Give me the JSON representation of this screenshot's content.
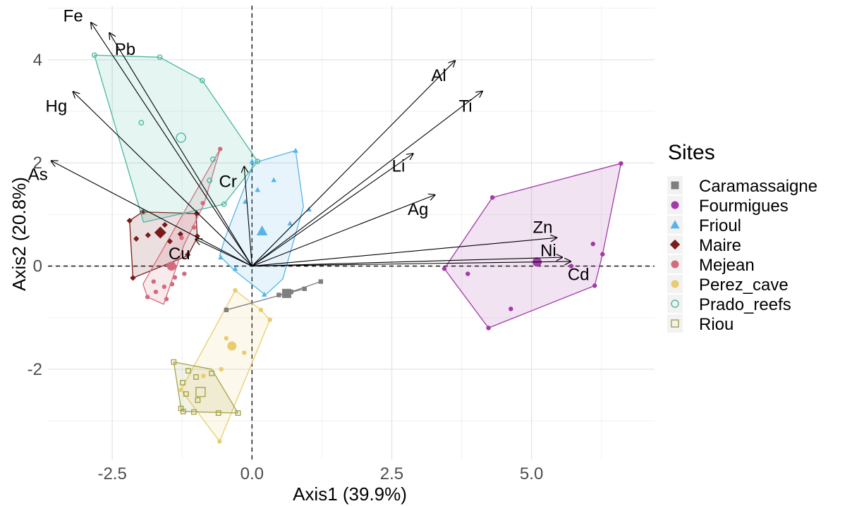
{
  "chart_data": {
    "type": "scatter",
    "xlabel": "Axis1 (39.9%)",
    "ylabel": "Axis2 (20.8%)",
    "xlim": [
      -3.65,
      7.2
    ],
    "ylim": [
      -3.75,
      5.05
    ],
    "x_ticks": [
      -2.5,
      0.0,
      2.5,
      5.0
    ],
    "x_tick_labels": [
      "-2.5",
      "0.0",
      "2.5",
      "5.0"
    ],
    "y_ticks": [
      -2,
      0,
      2,
      4
    ],
    "y_tick_labels": [
      "-2",
      "0",
      "2",
      "4"
    ],
    "grid": true,
    "reference_lines": {
      "x": 0,
      "y": 0,
      "style": "dashed"
    },
    "legend_title": "Sites",
    "legend_position": "right",
    "loadings": [
      {
        "name": "Fe",
        "x": -2.88,
        "y": 4.72,
        "label_x": -3.2,
        "label_y": 4.85
      },
      {
        "name": "Pb",
        "x": -2.55,
        "y": 4.52,
        "label_x": -2.27,
        "label_y": 4.2
      },
      {
        "name": "Hg",
        "x": -3.2,
        "y": 3.38,
        "label_x": -3.5,
        "label_y": 3.1
      },
      {
        "name": "As",
        "x": -3.59,
        "y": 2.04,
        "label_x": -3.83,
        "label_y": 1.78
      },
      {
        "name": "Cr",
        "x": -0.14,
        "y": 1.93,
        "label_x": -0.43,
        "label_y": 1.64
      },
      {
        "name": "Cu",
        "x": -1.01,
        "y": 0.52,
        "label_x": -1.3,
        "label_y": 0.24
      },
      {
        "name": "Al",
        "x": 3.63,
        "y": 3.98,
        "label_x": 3.34,
        "label_y": 3.7
      },
      {
        "name": "Ti",
        "x": 4.12,
        "y": 3.39,
        "label_x": 3.82,
        "label_y": 3.1
      },
      {
        "name": "Li",
        "x": 2.88,
        "y": 2.18,
        "label_x": 2.62,
        "label_y": 1.94
      },
      {
        "name": "Ag",
        "x": 3.27,
        "y": 1.38,
        "label_x": 2.97,
        "label_y": 1.1
      },
      {
        "name": "Zn",
        "x": 5.45,
        "y": 0.55,
        "label_x": 5.2,
        "label_y": 0.75
      },
      {
        "name": "Ni",
        "x": 5.55,
        "y": 0.17,
        "label_x": 5.3,
        "label_y": 0.3
      },
      {
        "name": "Cd",
        "x": 5.7,
        "y": 0.09,
        "label_x": 5.84,
        "label_y": -0.16
      }
    ],
    "series": [
      {
        "name": "Caramassaigne",
        "color": "#7f7f7f",
        "marker": "square",
        "centroid": [
          0.62,
          -0.53
        ],
        "points": [
          [
            -0.46,
            -0.85
          ],
          [
            0.48,
            -0.56
          ],
          [
            0.7,
            -0.5
          ],
          [
            0.94,
            -0.44
          ],
          [
            1.23,
            -0.3
          ]
        ],
        "hull": [
          [
            -0.46,
            -0.85
          ],
          [
            1.23,
            -0.3
          ]
        ]
      },
      {
        "name": "Fourmigues",
        "color": "#a23aa8",
        "marker": "circle",
        "centroid": [
          5.1,
          0.08
        ],
        "points": [
          [
            6.6,
            1.99
          ],
          [
            4.3,
            1.33
          ],
          [
            3.44,
            -0.05
          ],
          [
            3.86,
            -0.15
          ],
          [
            4.23,
            -1.2
          ],
          [
            4.63,
            -0.83
          ],
          [
            5.71,
            0.0
          ],
          [
            6.13,
            -0.38
          ],
          [
            6.27,
            0.23
          ],
          [
            6.1,
            0.43
          ]
        ],
        "hull": [
          [
            6.6,
            1.99
          ],
          [
            4.3,
            1.33
          ],
          [
            3.44,
            -0.05
          ],
          [
            4.23,
            -1.2
          ],
          [
            6.13,
            -0.38
          ],
          [
            6.27,
            0.23
          ]
        ]
      },
      {
        "name": "Frioul",
        "color": "#56b4e9",
        "marker": "triangle",
        "centroid": [
          0.18,
          0.68
        ],
        "points": [
          [
            0.78,
            2.24
          ],
          [
            0.39,
            1.67
          ],
          [
            0.1,
            1.48
          ],
          [
            -0.12,
            1.25
          ],
          [
            1.02,
            1.1
          ],
          [
            0.68,
            0.83
          ],
          [
            -0.56,
            0.17
          ],
          [
            -0.3,
            -0.05
          ],
          [
            0.22,
            -0.55
          ],
          [
            0.0,
            2.03
          ]
        ],
        "hull": [
          [
            0.78,
            2.24
          ],
          [
            0.92,
            1.15
          ],
          [
            0.55,
            -0.25
          ],
          [
            0.24,
            -0.56
          ],
          [
            -0.3,
            -0.1
          ],
          [
            -0.58,
            0.2
          ],
          [
            -0.48,
            0.55
          ],
          [
            0.03,
            2.0
          ]
        ]
      },
      {
        "name": "Maire",
        "color": "#7b1a1a",
        "marker": "diamond",
        "centroid": [
          -1.64,
          0.65
        ],
        "points": [
          [
            -2.19,
            0.88
          ],
          [
            -2.07,
            0.53
          ],
          [
            -1.96,
            1.05
          ],
          [
            -1.86,
            0.6
          ],
          [
            -1.56,
            0.8
          ],
          [
            -1.47,
            0.48
          ],
          [
            -1.28,
            0.62
          ],
          [
            -1.15,
            0.22
          ],
          [
            -2.13,
            -0.23
          ],
          [
            -0.99,
            1.02
          ],
          [
            -0.98,
            0.58
          ]
        ],
        "hull": [
          [
            -2.19,
            0.88
          ],
          [
            -1.96,
            1.05
          ],
          [
            -1.0,
            1.02
          ],
          [
            -0.98,
            0.55
          ],
          [
            -1.15,
            0.2
          ],
          [
            -2.13,
            -0.23
          ]
        ]
      },
      {
        "name": "Mejean",
        "color": "#d46b7c",
        "marker": "circle",
        "centroid": [
          -1.44,
          0.0
        ],
        "points": [
          [
            -0.57,
            2.27
          ],
          [
            -0.88,
            1.22
          ],
          [
            -1.04,
            0.75
          ],
          [
            -1.26,
            0.55
          ],
          [
            -1.38,
            -0.22
          ],
          [
            -1.57,
            -0.4
          ],
          [
            -1.76,
            -0.3
          ],
          [
            -1.87,
            -0.6
          ],
          [
            -1.72,
            -0.5
          ],
          [
            -1.43,
            -0.35
          ],
          [
            -1.21,
            -0.15
          ],
          [
            -1.53,
            -0.64
          ]
        ],
        "hull": [
          [
            -0.57,
            2.27
          ],
          [
            -0.86,
            1.2
          ],
          [
            -1.22,
            0.4
          ],
          [
            -1.58,
            -0.74
          ],
          [
            -1.87,
            -0.6
          ],
          [
            -1.95,
            -0.35
          ]
        ]
      },
      {
        "name": "Perez_cave",
        "color": "#e8cd6e",
        "marker": "circle",
        "centroid": [
          -0.36,
          -1.55
        ],
        "points": [
          [
            0.32,
            -1.04
          ],
          [
            -0.46,
            -1.4
          ],
          [
            -0.14,
            -1.68
          ],
          [
            -0.55,
            -2.0
          ],
          [
            -0.58,
            -3.4
          ],
          [
            -1.27,
            -2.4
          ],
          [
            -0.87,
            -2.13
          ],
          [
            0.16,
            -0.85
          ],
          [
            -0.3,
            -0.47
          ]
        ],
        "hull": [
          [
            0.32,
            -1.04
          ],
          [
            -0.58,
            -3.4
          ],
          [
            -1.27,
            -2.4
          ],
          [
            -0.3,
            -0.47
          ],
          [
            0.16,
            -0.85
          ]
        ]
      },
      {
        "name": "Prado_reefs",
        "color": "#4ab7a1",
        "marker": "open-circle",
        "centroid": [
          -1.27,
          2.49
        ],
        "points": [
          [
            -2.82,
            4.09
          ],
          [
            -1.65,
            4.05
          ],
          [
            -0.89,
            3.6
          ],
          [
            -1.98,
            2.78
          ],
          [
            -0.7,
            2.07
          ],
          [
            -0.76,
            1.66
          ],
          [
            -0.5,
            1.2
          ],
          [
            -1.94,
            1.05
          ],
          [
            0.1,
            2.03
          ]
        ],
        "hull": [
          [
            -2.82,
            4.09
          ],
          [
            -1.65,
            4.05
          ],
          [
            -0.89,
            3.6
          ],
          [
            0.1,
            2.03
          ],
          [
            -0.5,
            1.2
          ],
          [
            -1.94,
            0.85
          ]
        ]
      },
      {
        "name": "Riou",
        "color": "#a6a34a",
        "marker": "open-square",
        "centroid": [
          -0.92,
          -2.44
        ],
        "points": [
          [
            -1.4,
            -1.86
          ],
          [
            -1.14,
            -2.03
          ],
          [
            -1.0,
            -2.15
          ],
          [
            -0.97,
            -2.6
          ],
          [
            -1.18,
            -2.48
          ],
          [
            -1.24,
            -2.26
          ],
          [
            -1.04,
            -2.83
          ],
          [
            -1.23,
            -2.82
          ],
          [
            -1.27,
            -2.76
          ],
          [
            -0.6,
            -2.85
          ],
          [
            -0.25,
            -2.85
          ],
          [
            -0.72,
            -2.08
          ]
        ],
        "hull": [
          [
            -1.4,
            -1.86
          ],
          [
            -0.72,
            -2.0
          ],
          [
            -0.25,
            -2.85
          ],
          [
            -1.23,
            -2.82
          ],
          [
            -1.27,
            -2.76
          ]
        ]
      }
    ]
  }
}
